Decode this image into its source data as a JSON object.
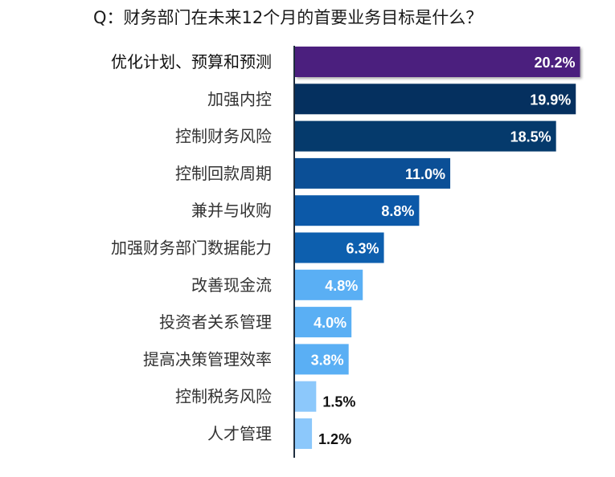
{
  "chart_data": {
    "type": "bar",
    "orientation": "horizontal",
    "title": "Q：财务部门在未来12个月的首要业务目标是什么？",
    "categories": [
      "优化计划、预算和预测",
      "加强内控",
      "控制财务风险",
      "控制回款周期",
      "兼并与收购",
      "加强财务部门数据能力",
      "改善现金流",
      "投资者关系管理",
      "提高决策管理效率",
      "控制税务风险",
      "人才管理"
    ],
    "values": [
      20.2,
      19.9,
      18.5,
      11.0,
      8.8,
      6.3,
      4.8,
      4.0,
      3.8,
      1.5,
      1.2
    ],
    "value_labels": [
      "20.2%",
      "19.9%",
      "18.5%",
      "11.0%",
      "8.8%",
      "6.3%",
      "4.8%",
      "4.0%",
      "3.8%",
      "1.5%",
      "1.2%"
    ],
    "value_unit": "%",
    "xlim": [
      0,
      21
    ],
    "bar_colors": [
      "#4b1f7e",
      "#05305f",
      "#053a6c",
      "#0b4f96",
      "#0c59a8",
      "#0d5fae",
      "#5aaff4",
      "#5aaff4",
      "#5aaff4",
      "#8cc8fb",
      "#8cc8fb"
    ],
    "grid": false,
    "legend": "none",
    "highlighted_category": "优化计划、预算和预测"
  }
}
